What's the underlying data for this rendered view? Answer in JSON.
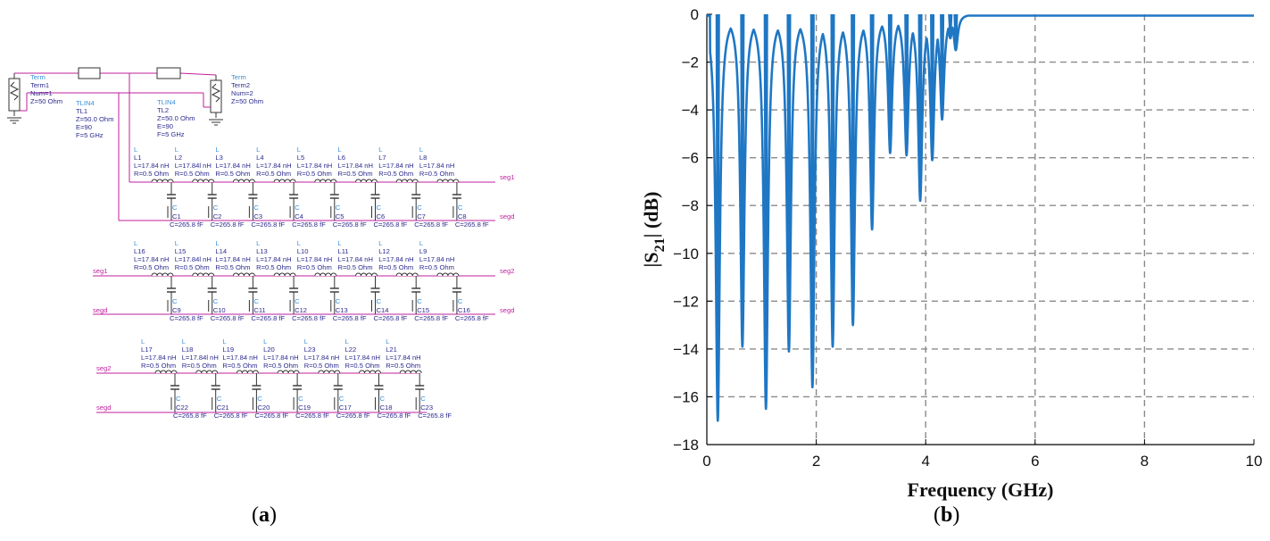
{
  "captions": {
    "a_label": "a",
    "b_label": "b"
  },
  "schematic": {
    "terms": [
      {
        "type": "Term",
        "name": "Term1",
        "num": "Num=1",
        "z": "Z=50 Ohm"
      },
      {
        "type": "Term",
        "name": "Term2",
        "num": "Num=2",
        "z": "Z=50 Ohm"
      }
    ],
    "tlines": [
      {
        "type": "TLIN4",
        "name": "TL1",
        "z": "Z=50.0 Ohm",
        "e": "E=90",
        "f": "F=5 GHz"
      },
      {
        "type": "TLIN4",
        "name": "TL2",
        "z": "Z=50.0 Ohm",
        "e": "E=90",
        "f": "F=5 GHz"
      }
    ],
    "component_type_L": "L",
    "component_type_C": "C",
    "rows": [
      {
        "net_in": "",
        "net_out": "seg1",
        "net_gnd": "segd",
        "inductors": [
          {
            "name": "L1",
            "l": "L=17.84 nH",
            "r": "R=0.5 Ohm"
          },
          {
            "name": "L2",
            "l": "L=17.84l nH",
            "r": "R=0.5 Ohm"
          },
          {
            "name": "L3",
            "l": "L=17.84 nH",
            "r": "R=0.5 Ohm"
          },
          {
            "name": "L4",
            "l": "L=17.84 nH",
            "r": "R=0.5 Ohm"
          },
          {
            "name": "L5",
            "l": "L=17.84 nH",
            "r": "R=0.5 Ohm"
          },
          {
            "name": "L6",
            "l": "L=17.84 nH",
            "r": "R=0.5 Ohm"
          },
          {
            "name": "L7",
            "l": "L=17.84 nH",
            "r": "R=0.5 Ohm"
          },
          {
            "name": "L8",
            "l": "L=17.84 nH",
            "r": "R=0.5 Ohm"
          }
        ],
        "capacitors": [
          {
            "name": "C1",
            "c": "C=265.8 fF"
          },
          {
            "name": "C2",
            "c": "C=265.8 fF"
          },
          {
            "name": "C3",
            "c": "C=265.8 fF"
          },
          {
            "name": "C4",
            "c": "C=265.8 fF"
          },
          {
            "name": "C5",
            "c": "C=265.8 fF"
          },
          {
            "name": "C6",
            "c": "C=265.8 fF"
          },
          {
            "name": "C7",
            "c": "C=265.8 fF"
          },
          {
            "name": "C8",
            "c": "C=265.8 fF"
          }
        ]
      },
      {
        "net_in": "seg1",
        "net_out": "seg2",
        "net_gnd": "segd",
        "net_gnd_out": "segd",
        "inductors": [
          {
            "name": "L16",
            "l": "L=17.84 nH",
            "r": "R=0.5 Ohm"
          },
          {
            "name": "L15",
            "l": "L=17.84l nH",
            "r": "R=0.5 Ohm"
          },
          {
            "name": "L14",
            "l": "L=17.84 nH",
            "r": "R=0.5 Ohm"
          },
          {
            "name": "L13",
            "l": "L=17.84 nH",
            "r": "R=0.5 Ohm"
          },
          {
            "name": "L10",
            "l": "L=17.84 nH",
            "r": "R=0.5 Ohm"
          },
          {
            "name": "L11",
            "l": "L=17.84 nH",
            "r": "R=0.5 Ohm"
          },
          {
            "name": "L12",
            "l": "L=17.84 nH",
            "r": "R=0.5 Ohm"
          },
          {
            "name": "L9",
            "l": "L=17.84 nH",
            "r": "R=0.5 Ohm"
          }
        ],
        "capacitors": [
          {
            "name": "C9",
            "c": "C=265.8 fF"
          },
          {
            "name": "C10",
            "c": "C=265.8 fF"
          },
          {
            "name": "C11",
            "c": "C=265.8 fF"
          },
          {
            "name": "C12",
            "c": "C=265.8 fF"
          },
          {
            "name": "C13",
            "c": "C=265.8 fF"
          },
          {
            "name": "C14",
            "c": "C=265.8 fF"
          },
          {
            "name": "C15",
            "c": "C=265.8 fF"
          },
          {
            "name": "C16",
            "c": "C=265.8 fF"
          }
        ]
      },
      {
        "net_in": "seg2",
        "net_out": "",
        "net_gnd": "segd",
        "inductors": [
          {
            "name": "L17",
            "l": "L=17.84 nH",
            "r": "R=0.5 Ohm"
          },
          {
            "name": "L18",
            "l": "L=17.84l nH",
            "r": "R=0.5 Ohm"
          },
          {
            "name": "L19",
            "l": "L=17.84 nH",
            "r": "R=0.5 Ohm"
          },
          {
            "name": "L20",
            "l": "L=17.84 nH",
            "r": "R=0.5 Ohm"
          },
          {
            "name": "L23",
            "l": "L=17.84 nH",
            "r": "R=0.5 Ohm"
          },
          {
            "name": "L22",
            "l": "L=17.84 nH",
            "r": "R=0.5 Ohm"
          },
          {
            "name": "L21",
            "l": "L=17.84 nH",
            "r": "R=0.5 Ohm"
          }
        ],
        "capacitors": [
          {
            "name": "C22",
            "c": "C=265.8 fF"
          },
          {
            "name": "C21",
            "c": "C=265.8 fF"
          },
          {
            "name": "C20",
            "c": "C=265.8 fF"
          },
          {
            "name": "C19",
            "c": "C=265.8 fF"
          },
          {
            "name": "C17",
            "c": "C=265.8 fF"
          },
          {
            "name": "C18",
            "c": "C=265.8 fF"
          },
          {
            "name": "C23",
            "c": "C=265.8 fF"
          }
        ]
      }
    ]
  },
  "chart_data": {
    "type": "line",
    "xlabel": "Frequency (GHz)",
    "ylabel_main": "|S",
    "ylabel_sub": "21",
    "ylabel_tail": "| (dB)",
    "xlim": [
      0,
      10
    ],
    "ylim": [
      -18,
      0
    ],
    "xticks": [
      "0",
      "2",
      "4",
      "6",
      "8",
      "10"
    ],
    "yticks": [
      "0",
      "−2",
      "−4",
      "−6",
      "−8",
      "−10",
      "−12",
      "−14",
      "−16",
      "−18"
    ],
    "grid": true,
    "line_color": "#1f77c4",
    "notches": [
      {
        "f": 0.2,
        "depth": -17.0
      },
      {
        "f": 0.65,
        "depth": -13.9
      },
      {
        "f": 1.08,
        "depth": -16.5
      },
      {
        "f": 1.5,
        "depth": -14.1
      },
      {
        "f": 1.93,
        "depth": -15.6
      },
      {
        "f": 2.3,
        "depth": -13.9
      },
      {
        "f": 2.67,
        "depth": -13.0
      },
      {
        "f": 3.02,
        "depth": -9.0
      },
      {
        "f": 3.35,
        "depth": -5.8
      },
      {
        "f": 3.65,
        "depth": -5.9
      },
      {
        "f": 3.9,
        "depth": -7.8
      },
      {
        "f": 4.12,
        "depth": -6.1
      },
      {
        "f": 4.3,
        "depth": -4.4
      },
      {
        "f": 4.45,
        "depth": -1.0
      },
      {
        "f": 4.55,
        "depth": -1.5
      }
    ]
  }
}
